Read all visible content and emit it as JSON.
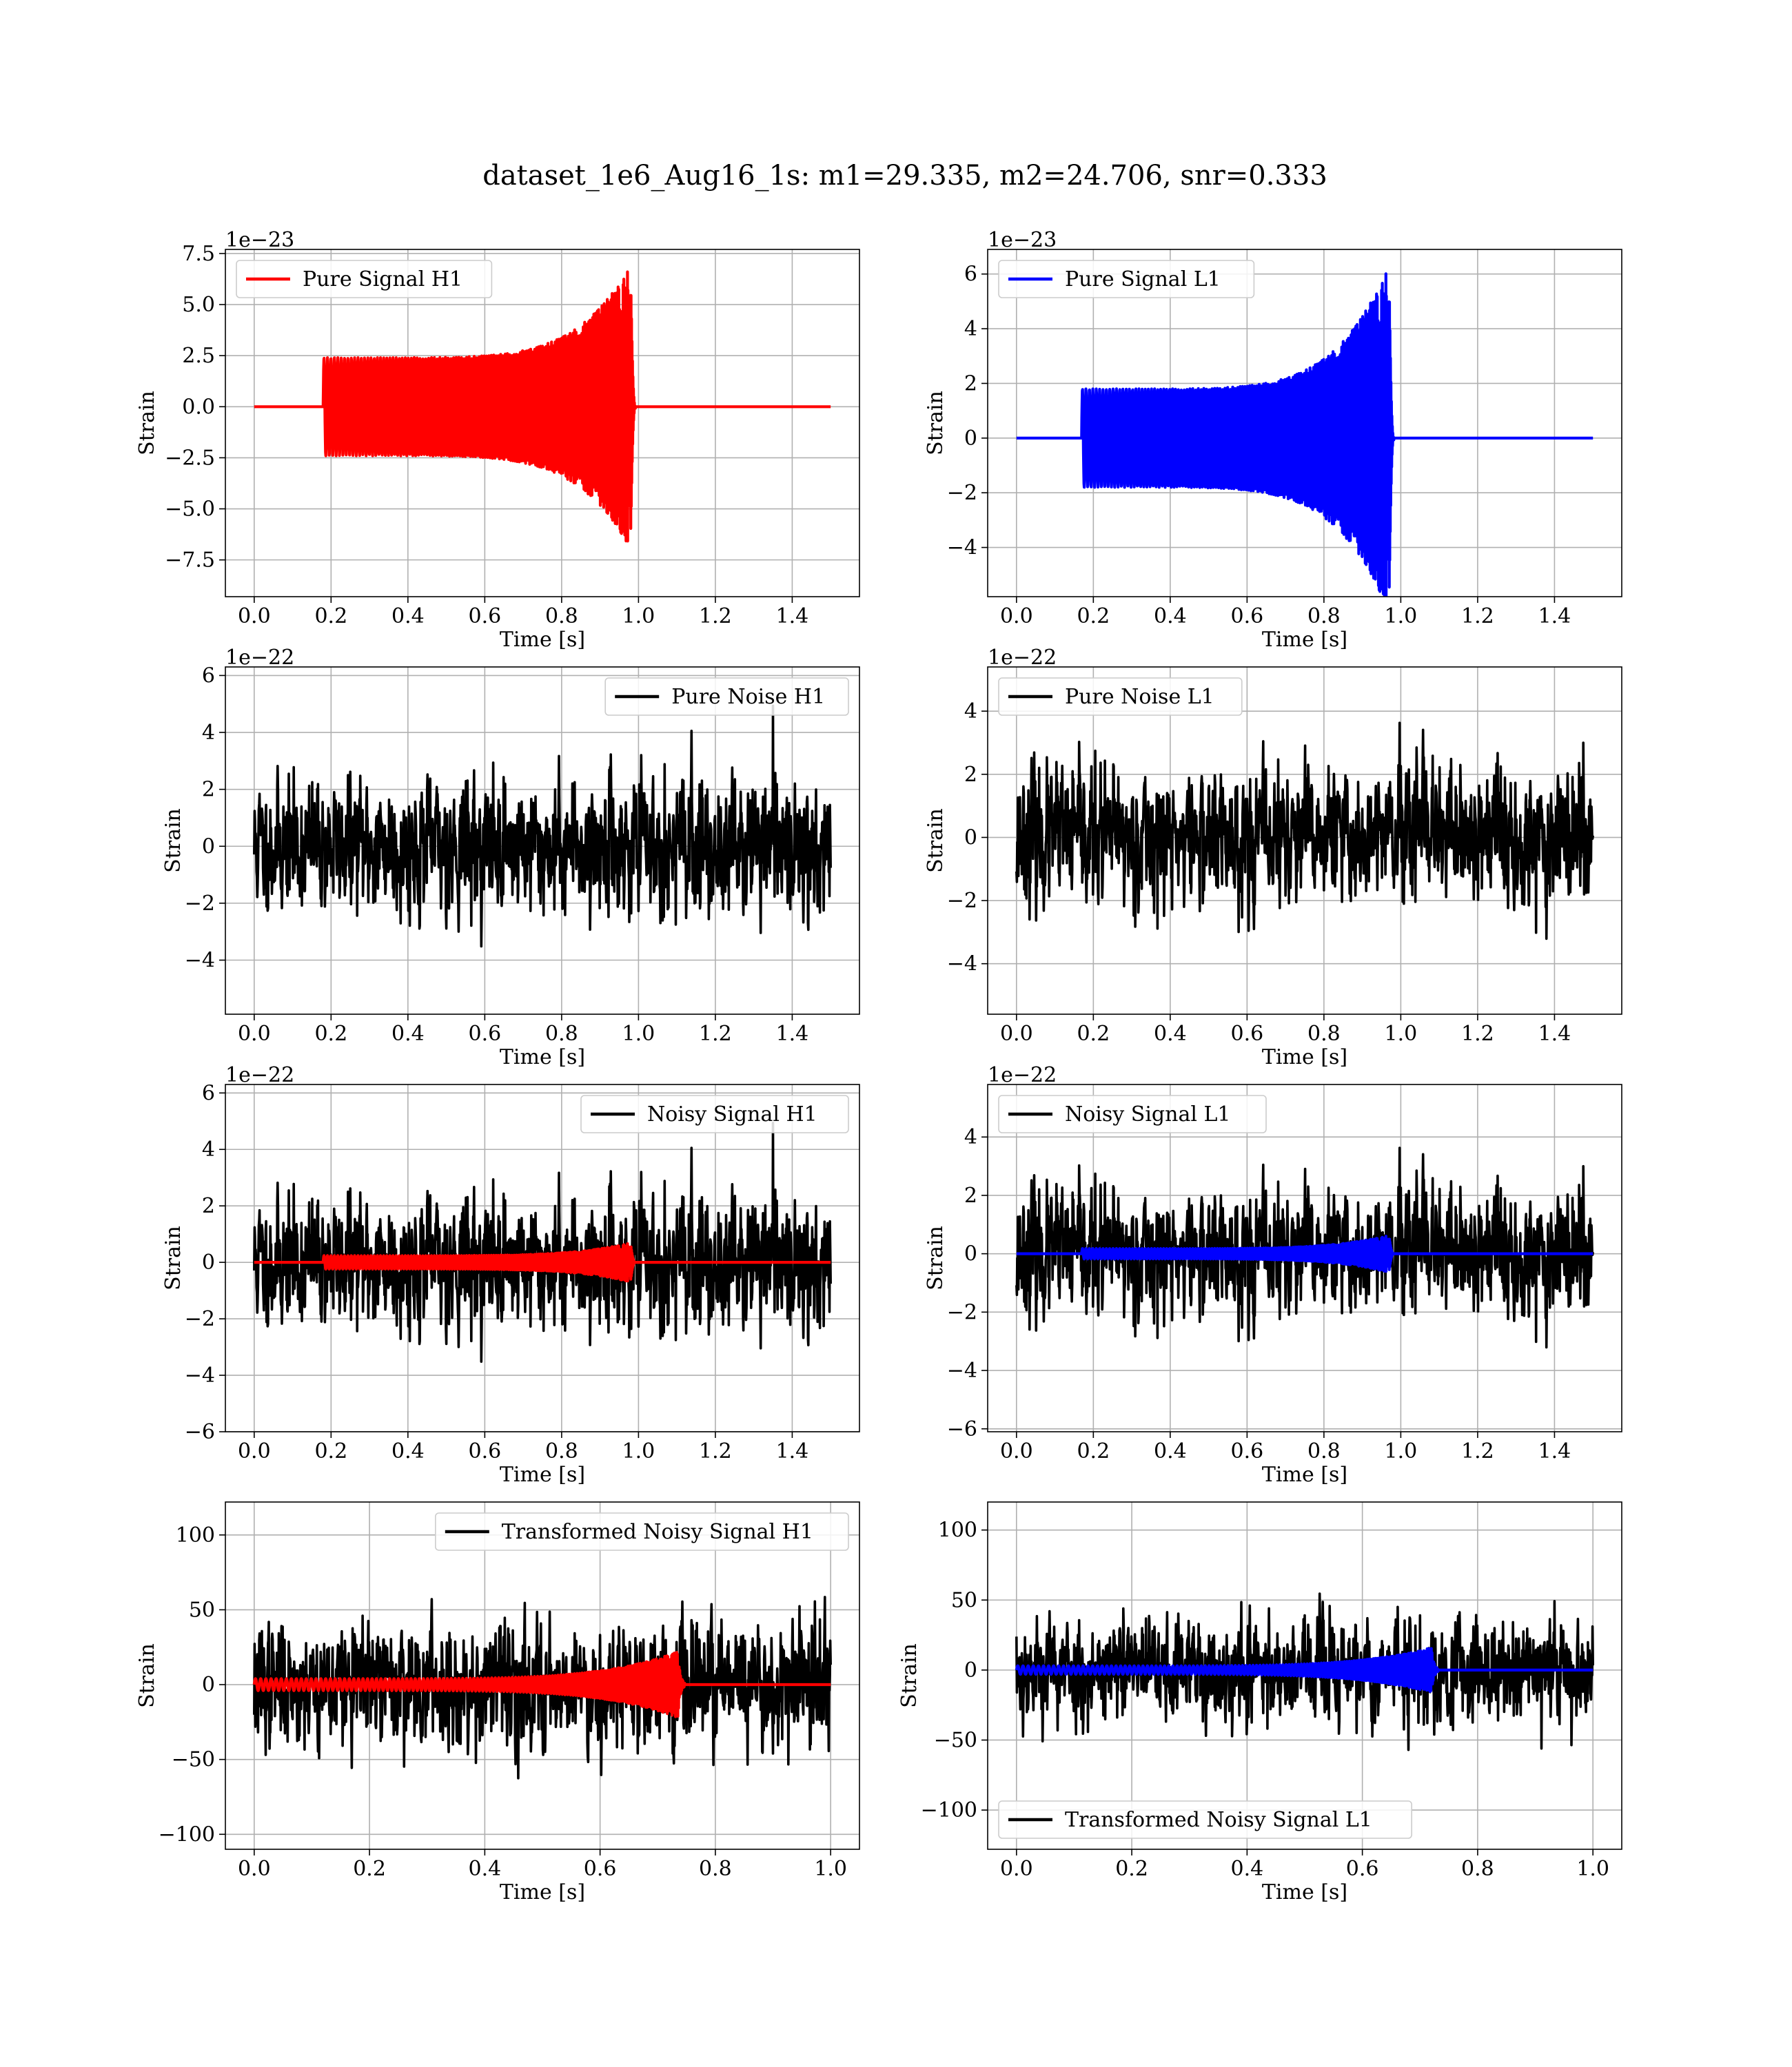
{
  "figure_title": "dataset_1e6_Aug16_1s: m1=29.335, m2=24.706, snr=0.333",
  "colors": {
    "red": "#ff0000",
    "blue": "#0000ff",
    "black": "#000000",
    "grid": "#b0b0b0"
  },
  "chart_data": [
    {
      "type": "line",
      "legend": "top-left",
      "grid": true,
      "offset_text": "1e−23",
      "xlabel": "Time [s]",
      "ylabel": "Strain",
      "xlim": [
        -0.075,
        1.575
      ],
      "ylim": [
        -9.3,
        7.7
      ],
      "xticks": [
        0.0,
        0.2,
        0.4,
        0.6,
        0.8,
        1.0,
        1.2,
        1.4
      ],
      "xtick_labels": [
        "0.0",
        "0.2",
        "0.4",
        "0.6",
        "0.8",
        "1.0",
        "1.2",
        "1.4"
      ],
      "yticks": [
        -7.5,
        -5.0,
        -2.5,
        0.0,
        2.5,
        5.0,
        7.5
      ],
      "ytick_labels": [
        "−7.5",
        "−5.0",
        "−2.5",
        "0.0",
        "2.5",
        "5.0",
        "7.5"
      ],
      "series": [
        {
          "name": "Pure Signal H1",
          "kind": "chirp",
          "color": "#ff0000",
          "x_range": [
            0.0,
            1.5
          ],
          "start": 0.18,
          "merger": 0.98,
          "amp_start": 2.4,
          "amp_peak": 7.0
        }
      ]
    },
    {
      "type": "line",
      "legend": "top-left",
      "grid": true,
      "offset_text": "1e−23",
      "xlabel": "Time [s]",
      "ylabel": "Strain",
      "xlim": [
        -0.075,
        1.575
      ],
      "ylim": [
        -5.8,
        6.9
      ],
      "xticks": [
        0.0,
        0.2,
        0.4,
        0.6,
        0.8,
        1.0,
        1.2,
        1.4
      ],
      "xtick_labels": [
        "0.0",
        "0.2",
        "0.4",
        "0.6",
        "0.8",
        "1.0",
        "1.2",
        "1.4"
      ],
      "yticks": [
        -4,
        -2,
        0,
        2,
        4,
        6
      ],
      "ytick_labels": [
        "−4",
        "−2",
        "0",
        "2",
        "4",
        "6"
      ],
      "series": [
        {
          "name": "Pure Signal L1",
          "kind": "chirp",
          "color": "#0000ff",
          "x_range": [
            0.0,
            1.5
          ],
          "start": 0.17,
          "merger": 0.97,
          "amp_start": 1.8,
          "amp_peak": 6.4
        }
      ]
    },
    {
      "type": "line",
      "legend": "top-right",
      "grid": true,
      "offset_text": "1e−22",
      "xlabel": "Time [s]",
      "ylabel": "Strain",
      "xlim": [
        -0.075,
        1.575
      ],
      "ylim": [
        -5.9,
        6.3
      ],
      "xticks": [
        0.0,
        0.2,
        0.4,
        0.6,
        0.8,
        1.0,
        1.2,
        1.4
      ],
      "xtick_labels": [
        "0.0",
        "0.2",
        "0.4",
        "0.6",
        "0.8",
        "1.0",
        "1.2",
        "1.4"
      ],
      "yticks": [
        -4,
        -2,
        0,
        2,
        4,
        6
      ],
      "ytick_labels": [
        "−4",
        "−2",
        "0",
        "2",
        "4",
        "6"
      ],
      "series": [
        {
          "name": "Pure Noise H1",
          "kind": "noise",
          "color": "#000000",
          "x_range": [
            0.0,
            1.5
          ],
          "sigma": 1.6,
          "ymax": 5.8,
          "ymin": -5.4,
          "seed": 11
        }
      ]
    },
    {
      "type": "line",
      "legend": "top-left",
      "grid": true,
      "offset_text": "1e−22",
      "xlabel": "Time [s]",
      "ylabel": "Strain",
      "xlim": [
        -0.075,
        1.575
      ],
      "ylim": [
        -5.6,
        5.4
      ],
      "xticks": [
        0.0,
        0.2,
        0.4,
        0.6,
        0.8,
        1.0,
        1.2,
        1.4
      ],
      "xtick_labels": [
        "0.0",
        "0.2",
        "0.4",
        "0.6",
        "0.8",
        "1.0",
        "1.2",
        "1.4"
      ],
      "yticks": [
        -4,
        -2,
        0,
        2,
        4
      ],
      "ytick_labels": [
        "−4",
        "−2",
        "0",
        "2",
        "4"
      ],
      "series": [
        {
          "name": "Pure Noise L1",
          "kind": "noise",
          "color": "#000000",
          "x_range": [
            0.0,
            1.5
          ],
          "sigma": 1.5,
          "ymax": 5.2,
          "ymin": -5.2,
          "seed": 23
        }
      ]
    },
    {
      "type": "line",
      "legend": "top-right",
      "grid": true,
      "offset_text": "1e−22",
      "xlabel": "Time [s]",
      "ylabel": "Strain",
      "xlim": [
        -0.075,
        1.575
      ],
      "ylim": [
        -6.0,
        6.3
      ],
      "xticks": [
        0.0,
        0.2,
        0.4,
        0.6,
        0.8,
        1.0,
        1.2,
        1.4
      ],
      "xtick_labels": [
        "0.0",
        "0.2",
        "0.4",
        "0.6",
        "0.8",
        "1.0",
        "1.2",
        "1.4"
      ],
      "yticks": [
        -6,
        -4,
        -2,
        0,
        2,
        4,
        6
      ],
      "ytick_labels": [
        "−6",
        "−4",
        "−2",
        "0",
        "2",
        "4",
        "6"
      ],
      "series": [
        {
          "name": "Noisy Signal H1",
          "kind": "noise",
          "color": "#000000",
          "x_range": [
            0.0,
            1.5
          ],
          "sigma": 1.6,
          "ymax": 5.6,
          "ymin": -5.4,
          "seed": 11
        },
        {
          "name": "",
          "kind": "chirp",
          "color": "#ff0000",
          "x_range": [
            0.0,
            1.5
          ],
          "start": 0.18,
          "merger": 0.98,
          "amp_start": 0.24,
          "amp_peak": 0.7
        }
      ]
    },
    {
      "type": "line",
      "legend": "top-left",
      "grid": true,
      "offset_text": "1e−22",
      "xlabel": "Time [s]",
      "ylabel": "Strain",
      "xlim": [
        -0.075,
        1.575
      ],
      "ylim": [
        -6.1,
        5.8
      ],
      "xticks": [
        0.0,
        0.2,
        0.4,
        0.6,
        0.8,
        1.0,
        1.2,
        1.4
      ],
      "xtick_labels": [
        "0.0",
        "0.2",
        "0.4",
        "0.6",
        "0.8",
        "1.0",
        "1.2",
        "1.4"
      ],
      "yticks": [
        -6,
        -4,
        -2,
        0,
        2,
        4
      ],
      "ytick_labels": [
        "−6",
        "−4",
        "−2",
        "0",
        "2",
        "4"
      ],
      "series": [
        {
          "name": "Noisy Signal L1",
          "kind": "noise",
          "color": "#000000",
          "x_range": [
            0.0,
            1.5
          ],
          "sigma": 1.5,
          "ymax": 5.3,
          "ymin": -5.4,
          "seed": 23
        },
        {
          "name": "",
          "kind": "chirp",
          "color": "#0000ff",
          "x_range": [
            0.0,
            1.5
          ],
          "start": 0.17,
          "merger": 0.97,
          "amp_start": 0.18,
          "amp_peak": 0.64
        }
      ]
    },
    {
      "type": "line",
      "legend": "top-right",
      "grid": true,
      "offset_text": "",
      "xlabel": "Time [s]",
      "ylabel": "Strain",
      "xlim": [
        -0.05,
        1.05
      ],
      "ylim": [
        -110,
        122
      ],
      "xticks": [
        0.0,
        0.2,
        0.4,
        0.6,
        0.8,
        1.0
      ],
      "xtick_labels": [
        "0.0",
        "0.2",
        "0.4",
        "0.6",
        "0.8",
        "1.0"
      ],
      "yticks": [
        -100,
        -50,
        0,
        50,
        100
      ],
      "ytick_labels": [
        "−100",
        "−50",
        "0",
        "50",
        "100"
      ],
      "series": [
        {
          "name": "Transformed Noisy Signal H1",
          "kind": "noise",
          "color": "#000000",
          "x_range": [
            0.0,
            1.0
          ],
          "sigma": 28,
          "ymax": 100,
          "ymin": -100,
          "seed": 37
        },
        {
          "name": "",
          "kind": "chirp",
          "color": "#ff0000",
          "x_range": [
            0.0,
            1.0
          ],
          "start": 0.0,
          "merger": 0.735,
          "amp_start": 4,
          "amp_peak": 22
        }
      ]
    },
    {
      "type": "line",
      "legend": "bottom-left",
      "grid": true,
      "offset_text": "",
      "xlabel": "Time [s]",
      "ylabel": "Strain",
      "xlim": [
        -0.05,
        1.05
      ],
      "ylim": [
        -128,
        120
      ],
      "xticks": [
        0.0,
        0.2,
        0.4,
        0.6,
        0.8,
        1.0
      ],
      "xtick_labels": [
        "0.0",
        "0.2",
        "0.4",
        "0.6",
        "0.8",
        "1.0"
      ],
      "yticks": [
        -100,
        -50,
        0,
        50,
        100
      ],
      "ytick_labels": [
        "−100",
        "−50",
        "0",
        "50",
        "100"
      ],
      "series": [
        {
          "name": "Transformed Noisy Signal L1",
          "kind": "noise",
          "color": "#000000",
          "x_range": [
            0.0,
            1.0
          ],
          "sigma": 26,
          "ymax": 111,
          "ymin": -121,
          "seed": 53
        },
        {
          "name": "",
          "kind": "chirp",
          "color": "#0000ff",
          "x_range": [
            0.0,
            1.0
          ],
          "start": 0.0,
          "merger": 0.72,
          "amp_start": 3,
          "amp_peak": 16
        }
      ]
    }
  ]
}
